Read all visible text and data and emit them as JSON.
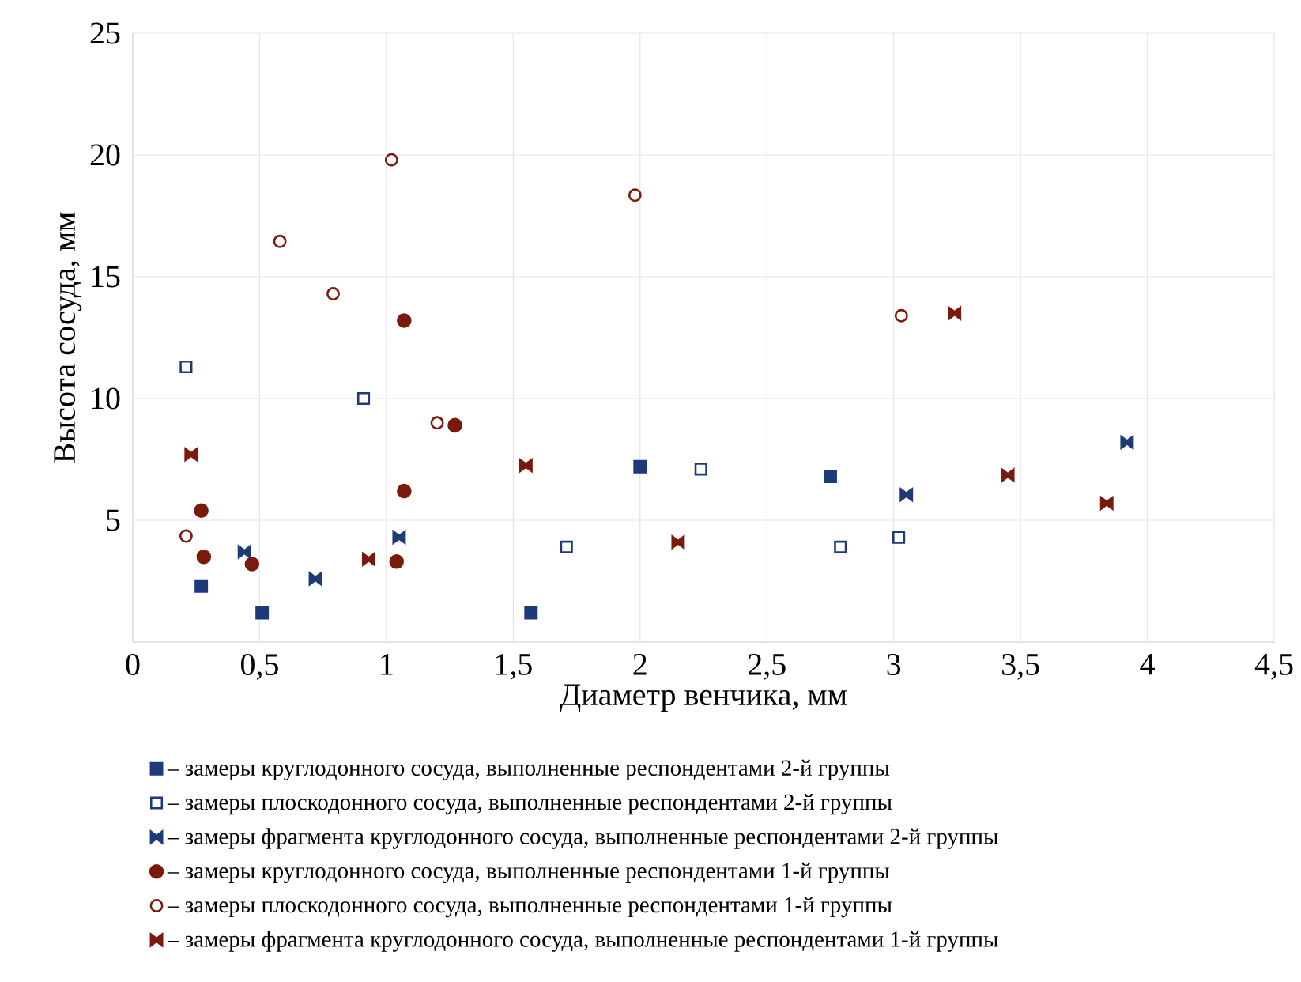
{
  "chart_data": {
    "type": "scatter",
    "xlabel": "Диаметр венчика, мм",
    "ylabel": "Высота сосуда, мм",
    "xlim": [
      0,
      4.5
    ],
    "ylim": [
      0,
      25
    ],
    "xticks": [
      0,
      {
        "value": 0.5,
        "label": "0,5"
      },
      1,
      {
        "value": 1.5,
        "label": "1,5"
      },
      2,
      {
        "value": 2.5,
        "label": "2,5"
      },
      3,
      {
        "value": 3.5,
        "label": "3,5"
      },
      4,
      {
        "value": 4.5,
        "label": "4,5"
      }
    ],
    "yticks": [
      {
        "value": 0,
        "label": null
      },
      5,
      10,
      15,
      20,
      25
    ],
    "grid": true,
    "legend": "bottom",
    "series": [
      {
        "name": "– замеры круглодонного сосуда, выполненные респондентами 2-й группы",
        "color": "#1f3a78",
        "marker": "square",
        "x": [
          0.27,
          0.51,
          1.57,
          2.0,
          2.75
        ],
        "values": [
          2.3,
          1.2,
          1.2,
          7.2,
          6.8
        ]
      },
      {
        "name": "– замеры плоскодонного сосуда, выполненные респондентами 2-й группы",
        "color": "#1f3a78",
        "marker": "square-open",
        "x": [
          0.21,
          0.91,
          1.71,
          2.24,
          2.79,
          3.02
        ],
        "values": [
          11.3,
          10.0,
          3.9,
          7.1,
          3.9,
          4.3
        ]
      },
      {
        "name": "– замеры фрагмента круглодонного сосуда, выполненные респондентами 2-й группы",
        "color": "#1f3a78",
        "x": [
          0.44,
          0.72,
          1.05,
          3.05,
          3.92
        ],
        "values": [
          3.7,
          2.6,
          4.3,
          6.05,
          8.2
        ]
      },
      {
        "name": "– замеры круглодонного сосуда, выполненные респондентами 1-й группы",
        "color": "#7a1a0c",
        "marker": "circle",
        "x": [
          0.27,
          0.28,
          0.47,
          1.04,
          1.07,
          1.07,
          1.27
        ],
        "values": [
          5.4,
          3.5,
          3.2,
          3.3,
          13.2,
          6.2,
          8.9
        ]
      },
      {
        "name": "– замеры плоскодонного сосуда, выполненные респондентами 1-й группы",
        "color": "#7a1a0c",
        "marker": "circle-open",
        "x": [
          0.21,
          0.58,
          0.79,
          1.02,
          1.2,
          1.98,
          3.03
        ],
        "values": [
          4.35,
          16.45,
          14.3,
          19.8,
          9.0,
          18.35,
          13.4
        ]
      },
      {
        "name": "– замеры фрагмента круглодонного сосуда, выполненные респондентами 1-й группы",
        "color": "#7a1a0c",
        "x": [
          0.23,
          0.93,
          1.55,
          2.15,
          3.24,
          3.45,
          3.84
        ],
        "values": [
          7.7,
          3.4,
          7.25,
          4.1,
          13.5,
          6.85,
          5.7
        ]
      }
    ]
  }
}
